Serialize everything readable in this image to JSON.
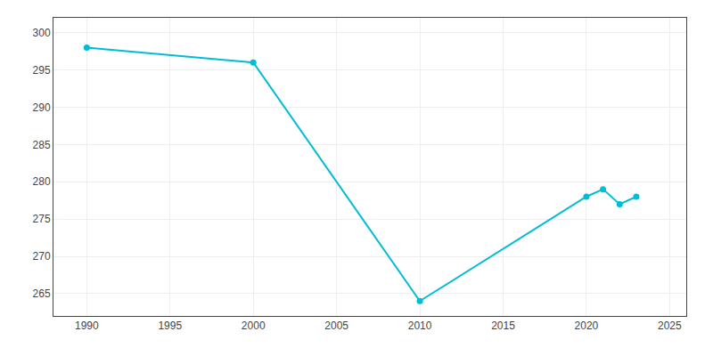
{
  "chart_data": {
    "type": "line",
    "x": [
      1990,
      2000,
      2010,
      2020,
      2021,
      2022,
      2023
    ],
    "values": [
      298,
      296,
      264,
      278,
      279,
      277,
      278
    ],
    "color": "#00bcd4",
    "marker": "circle",
    "xlim": [
      1988,
      2026
    ],
    "xticks": [
      1990,
      1995,
      2000,
      2005,
      2010,
      2015,
      2020,
      2025
    ],
    "ylim": [
      262,
      302
    ],
    "yticks": [
      265,
      270,
      275,
      280,
      285,
      290,
      295,
      300
    ],
    "grid": true
  }
}
